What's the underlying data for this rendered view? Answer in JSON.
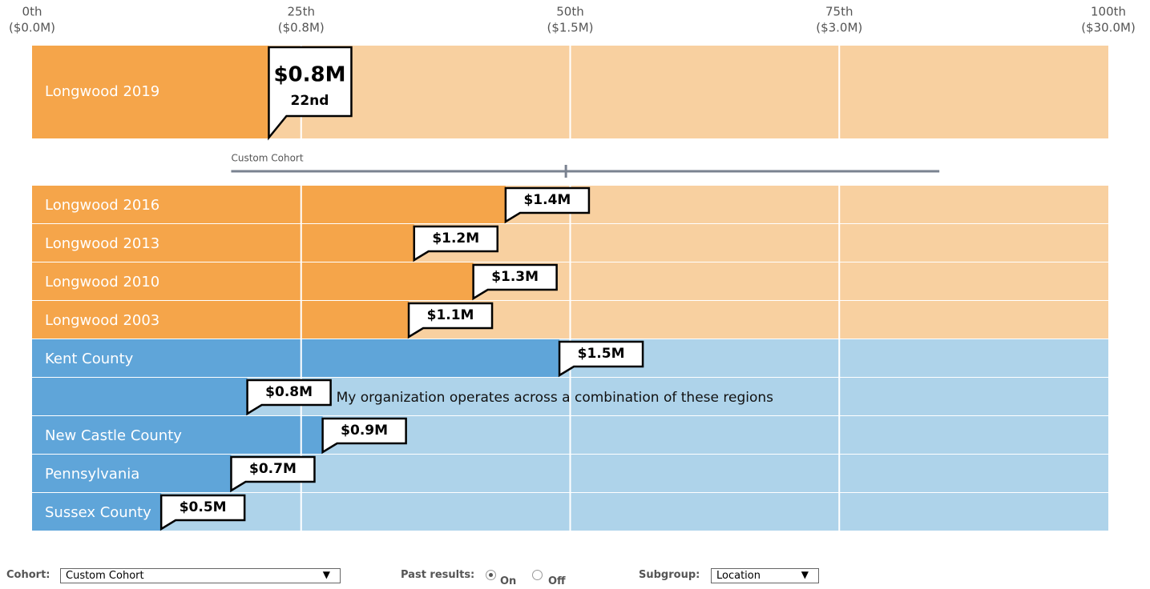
{
  "chart_data": {
    "type": "bar",
    "orientation": "horizontal",
    "xlim": [
      0,
      100
    ],
    "xticks": [
      {
        "value": 0,
        "label": "0th"
      },
      {
        "value": 25,
        "label": "25th"
      },
      {
        "value": 50,
        "label": "50th"
      },
      {
        "value": 75,
        "label": "75th"
      },
      {
        "value": 100,
        "label": "100th"
      }
    ],
    "xtick_amounts": [
      "($0.0M)",
      "($0.8M)",
      "($1.5M)",
      "($3.0M)",
      "($30.0M)"
    ],
    "grid": true,
    "highlight": {
      "category": "Longwood 2019",
      "value": 22,
      "amount": "$0.8M",
      "rank": "22nd",
      "color": "#f5a54a",
      "track_color": "#f8d0a0"
    },
    "cohort": {
      "label": "Custom Cohort",
      "range": [
        18.5,
        84.3
      ],
      "median": 49.6,
      "color": "#7a8290"
    },
    "categories": [
      "Longwood 2016",
      "Longwood 2013",
      "Longwood 2010",
      "Longwood 2003",
      "Kent County",
      null,
      "New Castle County",
      "Pennsylvania",
      "Sussex County"
    ],
    "values": [
      44,
      35.5,
      41,
      35,
      49,
      20,
      27,
      18.5,
      12
    ],
    "amounts": [
      "$1.4M",
      "$1.2M",
      "$1.3M",
      "$1.1M",
      "$1.5M",
      "$0.8M",
      "$0.9M",
      "$0.7M",
      "$0.5M"
    ],
    "colors": [
      "#f5a54a",
      "#f5a54a",
      "#f5a54a",
      "#f5a54a",
      "#5fa5d9",
      "#5fa5d9",
      "#5fa5d9",
      "#5fa5d9",
      "#5fa5d9"
    ],
    "track_colors": [
      "#f8d0a0",
      "#f8d0a0",
      "#f8d0a0",
      "#f8d0a0",
      "#aed3ea",
      "#aed3ea",
      "#aed3ea",
      "#aed3ea",
      "#aed3ea"
    ],
    "annotation": {
      "row": 5,
      "text": "My organization operates across a combination of these regions"
    }
  },
  "controls": {
    "cohort_label": "Cohort:",
    "cohort_value": "Custom Cohort",
    "past_label": "Past results:",
    "past_on": "On",
    "past_off": "Off",
    "subgroup_label": "Subgroup:",
    "subgroup_value": "Location"
  }
}
